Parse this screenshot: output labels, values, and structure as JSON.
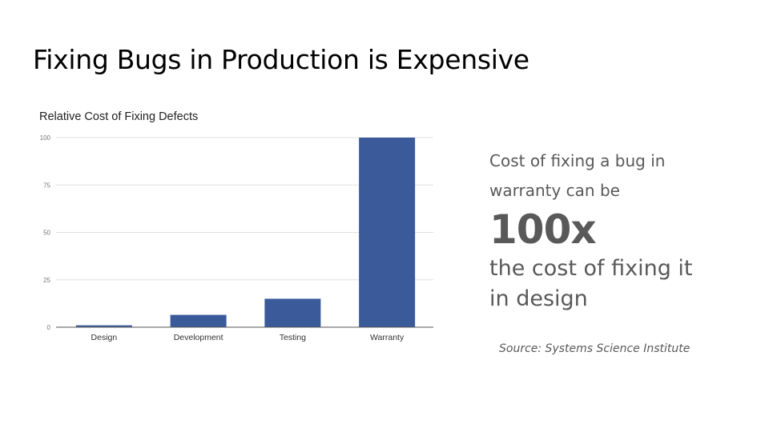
{
  "slide": {
    "title": "Fixing Bugs in Production is Expensive"
  },
  "callout": {
    "line1a": "Cost of fixing a bug in",
    "line1b": "warranty can be",
    "big": "100x",
    "line3a": "the cost of fixing it",
    "line3b": "in design"
  },
  "source": "Source: Systems Science Institute",
  "colors": {
    "bar": "#3a5a9a",
    "gridline": "#e0e0e0",
    "axis": "#555555",
    "callout_text": "#595959"
  },
  "chart_data": {
    "type": "bar",
    "title": "Relative Cost of Fixing Defects",
    "xlabel": "",
    "ylabel": "",
    "categories": [
      "Design",
      "Development",
      "Testing",
      "Warranty"
    ],
    "values": [
      1,
      6.5,
      15,
      100
    ],
    "ylim": [
      0,
      100
    ],
    "yticks": [
      "0",
      "25",
      "50",
      "75",
      "100"
    ],
    "grid": true,
    "legend": "none"
  }
}
